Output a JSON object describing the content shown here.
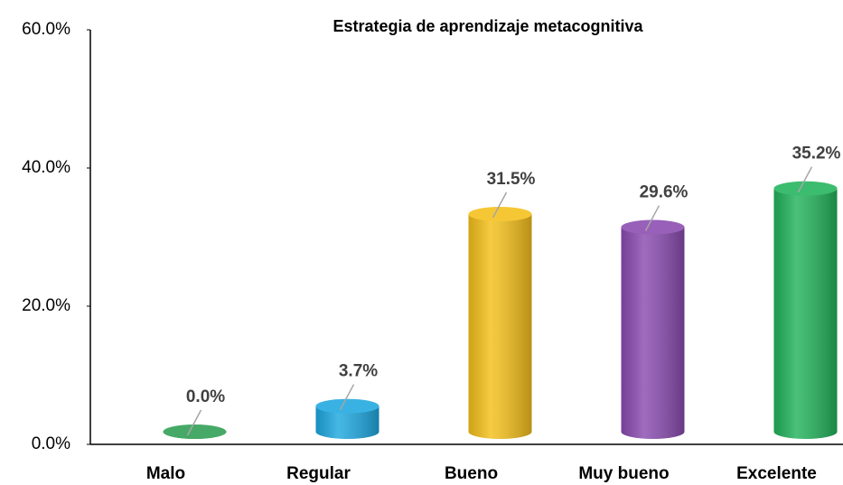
{
  "chart_data": {
    "type": "bar",
    "title": "Estrategia de aprendizaje metacognitiva",
    "categories": [
      "Malo",
      "Regular",
      "Bueno",
      "Muy bueno",
      "Excelente"
    ],
    "values": [
      0,
      3.7,
      31.5,
      29.6,
      35.2
    ],
    "value_labels": [
      "0.0%",
      "3.7%",
      "31.5%",
      "29.6%",
      "35.2%"
    ],
    "colors": [
      "#2e9e52",
      "#1ea8e0",
      "#f5c01a",
      "#8a4bb0",
      "#22b35b"
    ],
    "ylim": [
      0,
      60
    ],
    "yticks": [
      {
        "value": 0,
        "label": "0.0%"
      },
      {
        "value": 20,
        "label": "20.0%"
      },
      {
        "value": 40,
        "label": "40.0%"
      },
      {
        "value": 60,
        "label": "60.0%"
      }
    ],
    "grid": false
  }
}
